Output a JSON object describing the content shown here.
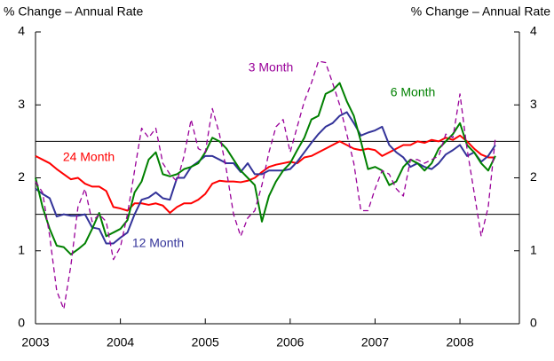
{
  "chart_data": {
    "type": "line",
    "y_label": "% Change – Annual Rate",
    "y2_label": "% Change – Annual Rate",
    "x": [
      2003,
      2003.083,
      2003.167,
      2003.25,
      2003.333,
      2003.417,
      2003.5,
      2003.583,
      2003.667,
      2003.75,
      2003.833,
      2003.917,
      2004,
      2004.083,
      2004.167,
      2004.25,
      2004.333,
      2004.417,
      2004.5,
      2004.583,
      2004.667,
      2004.75,
      2004.833,
      2004.917,
      2005,
      2005.083,
      2005.167,
      2005.25,
      2005.333,
      2005.417,
      2005.5,
      2005.583,
      2005.667,
      2005.75,
      2005.833,
      2005.917,
      2006,
      2006.083,
      2006.167,
      2006.25,
      2006.333,
      2006.417,
      2006.5,
      2006.583,
      2006.667,
      2006.75,
      2006.833,
      2006.917,
      2007,
      2007.083,
      2007.167,
      2007.25,
      2007.333,
      2007.417,
      2007.5,
      2007.583,
      2007.667,
      2007.75,
      2007.833,
      2007.917,
      2008,
      2008.083,
      2008.167,
      2008.25,
      2008.333,
      2008.417
    ],
    "series": [
      {
        "name": "24 Month",
        "color": "#ff0000",
        "width": 2,
        "dashed": false,
        "values": [
          2.3,
          2.25,
          2.2,
          2.12,
          2.05,
          1.98,
          2.0,
          1.92,
          1.88,
          1.88,
          1.82,
          1.6,
          1.58,
          1.55,
          1.65,
          1.65,
          1.63,
          1.65,
          1.62,
          1.52,
          1.6,
          1.65,
          1.65,
          1.7,
          1.78,
          1.92,
          1.96,
          1.95,
          1.95,
          1.94,
          1.96,
          2.0,
          2.08,
          2.15,
          2.18,
          2.2,
          2.22,
          2.2,
          2.28,
          2.3,
          2.35,
          2.4,
          2.45,
          2.5,
          2.45,
          2.4,
          2.38,
          2.4,
          2.38,
          2.3,
          2.35,
          2.4,
          2.45,
          2.45,
          2.5,
          2.48,
          2.52,
          2.5,
          2.55,
          2.52,
          2.58,
          2.5,
          2.4,
          2.32,
          2.28,
          2.28
        ]
      },
      {
        "name": "12 Month",
        "color": "#333399",
        "width": 2,
        "dashed": false,
        "values": [
          1.85,
          1.78,
          1.72,
          1.47,
          1.5,
          1.48,
          1.48,
          1.5,
          1.32,
          1.3,
          1.1,
          1.1,
          1.18,
          1.25,
          1.5,
          1.7,
          1.73,
          1.8,
          1.72,
          1.7,
          2.0,
          2.0,
          2.15,
          2.22,
          2.3,
          2.3,
          2.25,
          2.2,
          2.2,
          2.08,
          2.2,
          2.05,
          2.05,
          2.1,
          2.1,
          2.1,
          2.12,
          2.22,
          2.35,
          2.48,
          2.6,
          2.7,
          2.75,
          2.85,
          2.9,
          2.75,
          2.58,
          2.62,
          2.65,
          2.7,
          2.45,
          2.35,
          2.28,
          2.15,
          2.2,
          2.15,
          2.12,
          2.2,
          2.32,
          2.38,
          2.45,
          2.3,
          2.35,
          2.22,
          2.3,
          2.45
        ]
      },
      {
        "name": "6 Month",
        "color": "#008000",
        "width": 2,
        "dashed": false,
        "values": [
          2.0,
          1.6,
          1.3,
          1.07,
          1.05,
          0.95,
          1.02,
          1.1,
          1.3,
          1.52,
          1.2,
          1.25,
          1.3,
          1.42,
          1.8,
          1.95,
          2.25,
          2.35,
          2.05,
          2.02,
          2.05,
          2.12,
          2.15,
          2.2,
          2.35,
          2.55,
          2.5,
          2.4,
          2.25,
          2.1,
          2.0,
          1.9,
          1.4,
          1.75,
          1.95,
          2.1,
          2.2,
          2.38,
          2.55,
          2.8,
          2.85,
          3.15,
          3.2,
          3.3,
          3.05,
          2.85,
          2.5,
          2.12,
          2.15,
          2.1,
          1.9,
          1.95,
          2.15,
          2.25,
          2.2,
          2.1,
          2.2,
          2.4,
          2.5,
          2.6,
          2.75,
          2.45,
          2.35,
          2.2,
          2.1,
          2.3
        ]
      },
      {
        "name": "3 Month",
        "color": "#990099",
        "width": 1.3,
        "dashed": true,
        "values": [
          1.95,
          1.8,
          1.2,
          0.45,
          0.2,
          0.8,
          1.6,
          1.85,
          1.4,
          1.5,
          1.4,
          0.88,
          1.05,
          1.5,
          2.1,
          2.68,
          2.55,
          2.68,
          2.2,
          2.05,
          1.95,
          2.3,
          2.8,
          2.4,
          2.35,
          2.95,
          2.6,
          2.1,
          1.5,
          1.2,
          1.45,
          1.55,
          1.9,
          2.35,
          2.7,
          2.8,
          2.35,
          2.7,
          3.05,
          3.3,
          3.6,
          3.58,
          3.3,
          3.0,
          2.6,
          2.2,
          1.55,
          1.55,
          1.85,
          2.1,
          2.05,
          1.85,
          1.75,
          2.25,
          2.25,
          2.2,
          2.25,
          2.3,
          2.6,
          2.55,
          3.15,
          2.4,
          1.8,
          1.2,
          1.6,
          2.55
        ]
      }
    ],
    "ref_lines": [
      1.5,
      2.5
    ],
    "xlim": [
      2003,
      2008.7
    ],
    "xticks": [
      2003,
      2004,
      2005,
      2006,
      2007,
      2008
    ],
    "ylim": [
      0,
      4
    ],
    "yticks": [
      0,
      1,
      2,
      3,
      4
    ],
    "y2lim": [
      0,
      4
    ],
    "y2ticks": [
      0,
      1,
      2,
      3,
      4
    ]
  }
}
